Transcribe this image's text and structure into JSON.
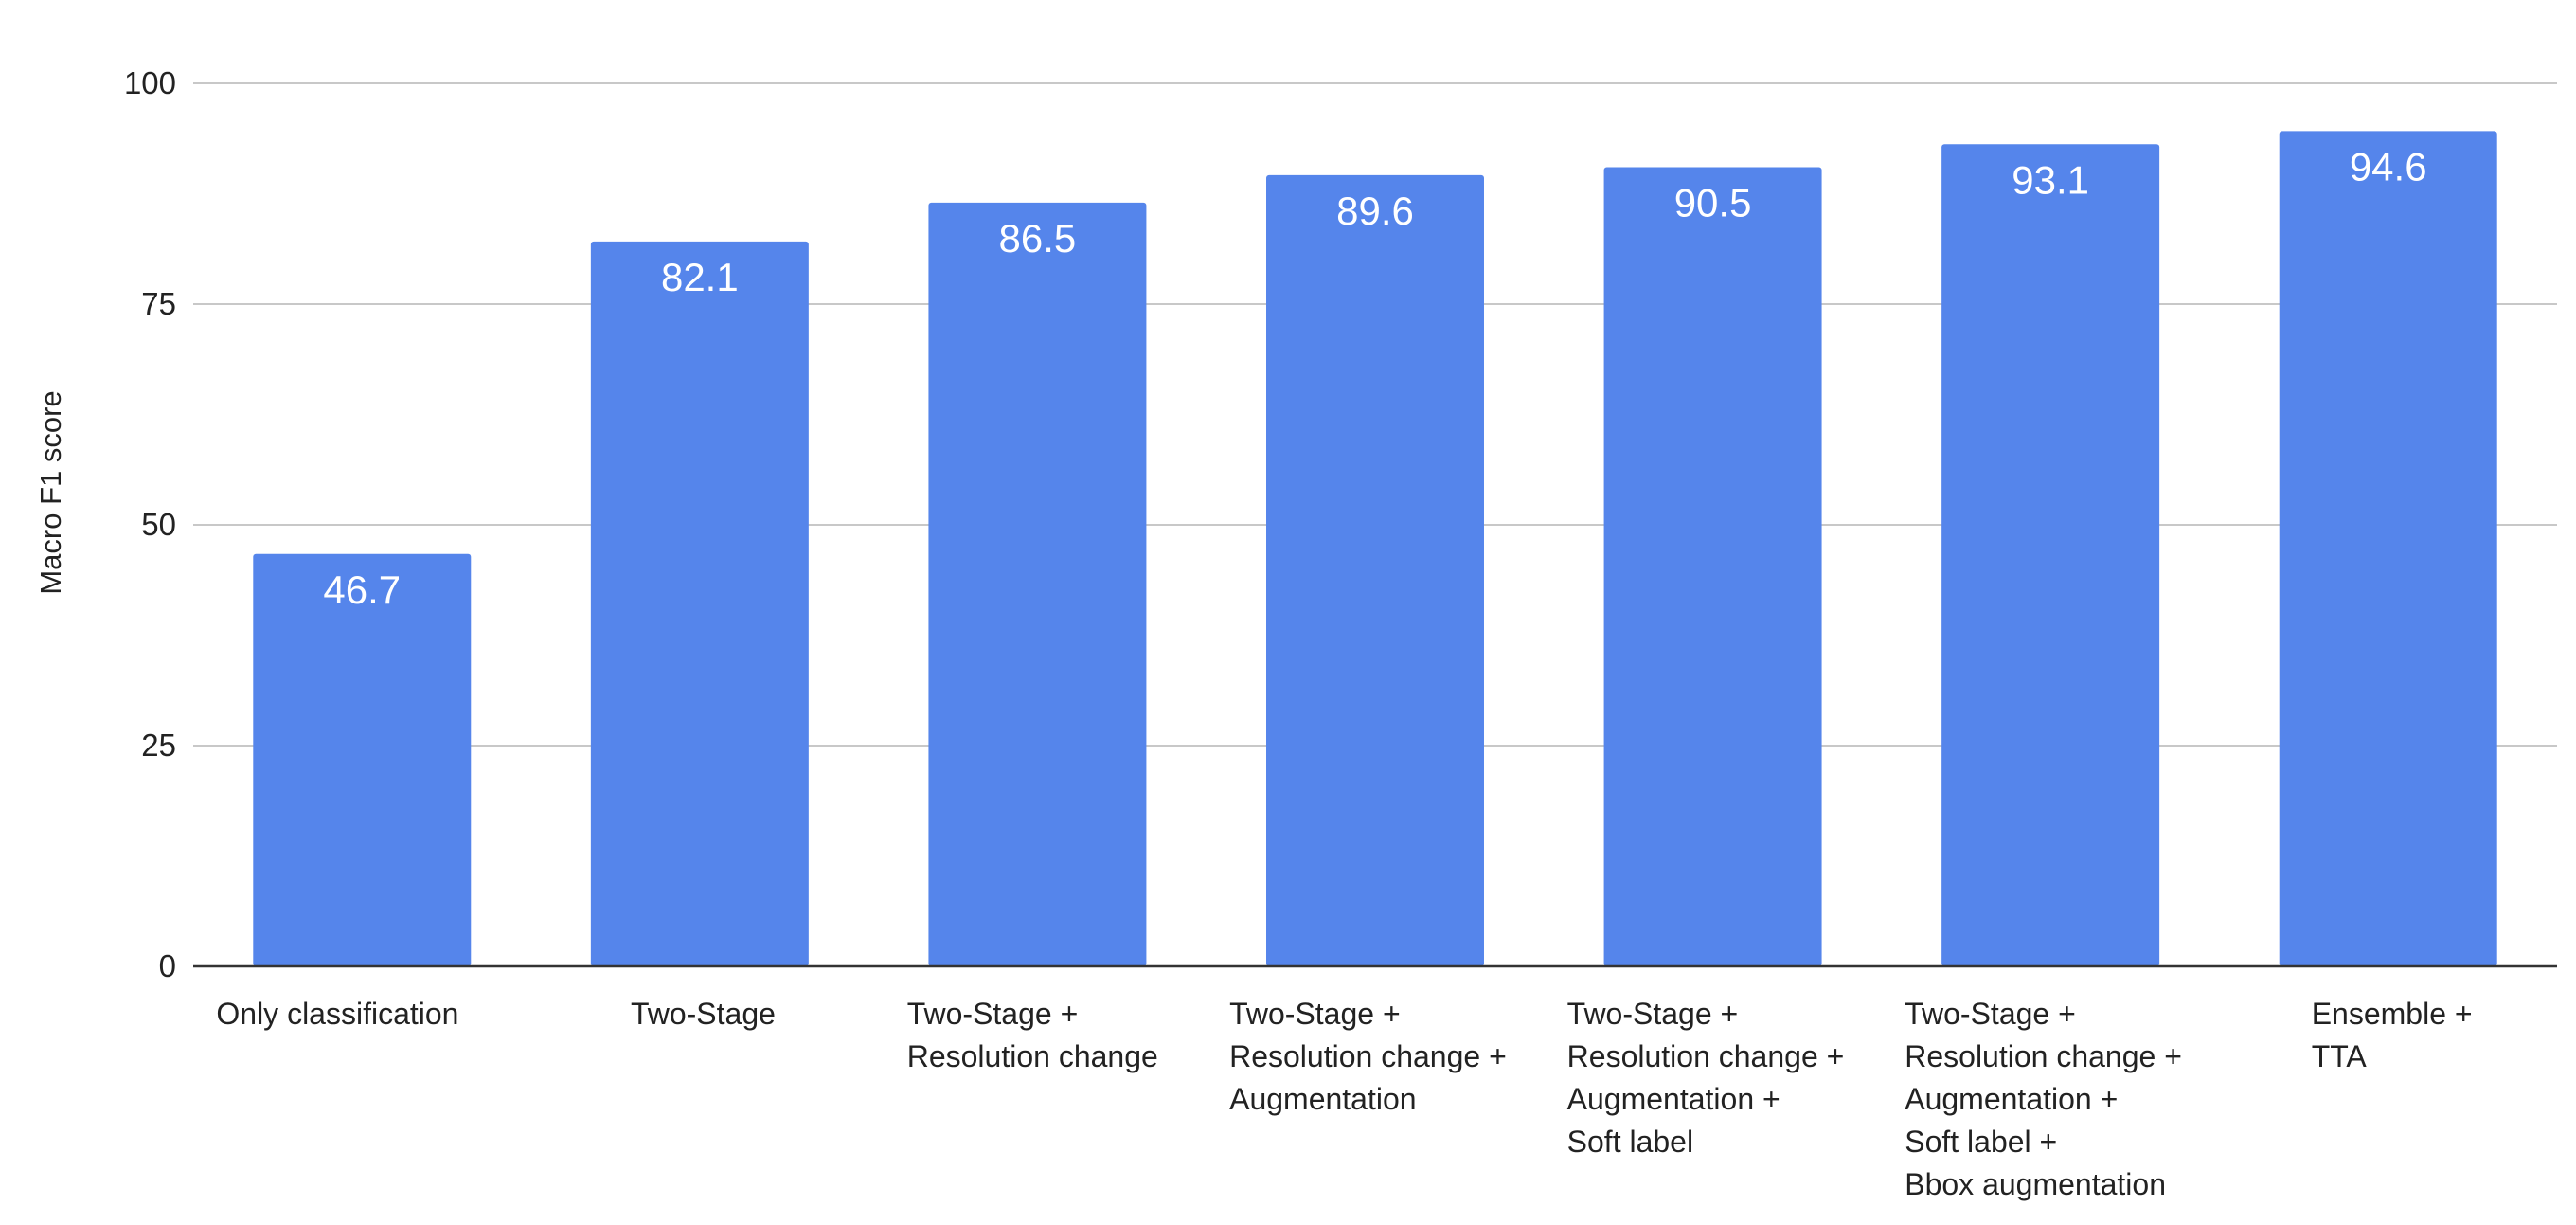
{
  "chart_data": {
    "type": "bar",
    "title": "",
    "xlabel": "",
    "ylabel": "Macro F1 score",
    "ylim": [
      0,
      100
    ],
    "yticks": [
      0,
      25,
      50,
      75,
      100
    ],
    "grid": true,
    "legend": "none",
    "bar_color": "#5585eb",
    "data_labels": true,
    "categories": [
      [
        "Only classification"
      ],
      [
        "Two-Stage"
      ],
      [
        "Two-Stage +",
        "Resolution change"
      ],
      [
        "Two-Stage +",
        "Resolution change +",
        "Augmentation"
      ],
      [
        "Two-Stage +",
        "Resolution change +",
        "Augmentation +",
        "Soft label"
      ],
      [
        "Two-Stage +",
        "Resolution change +",
        "Augmentation +",
        "Soft label +",
        "Bbox augmentation"
      ],
      [
        "Ensemble +",
        "TTA"
      ]
    ],
    "values": [
      46.7,
      82.1,
      86.5,
      89.6,
      90.5,
      93.1,
      94.6
    ],
    "value_labels": [
      "46.7",
      "82.1",
      "86.5",
      "89.6",
      "90.5",
      "93.1",
      "94.6"
    ]
  }
}
